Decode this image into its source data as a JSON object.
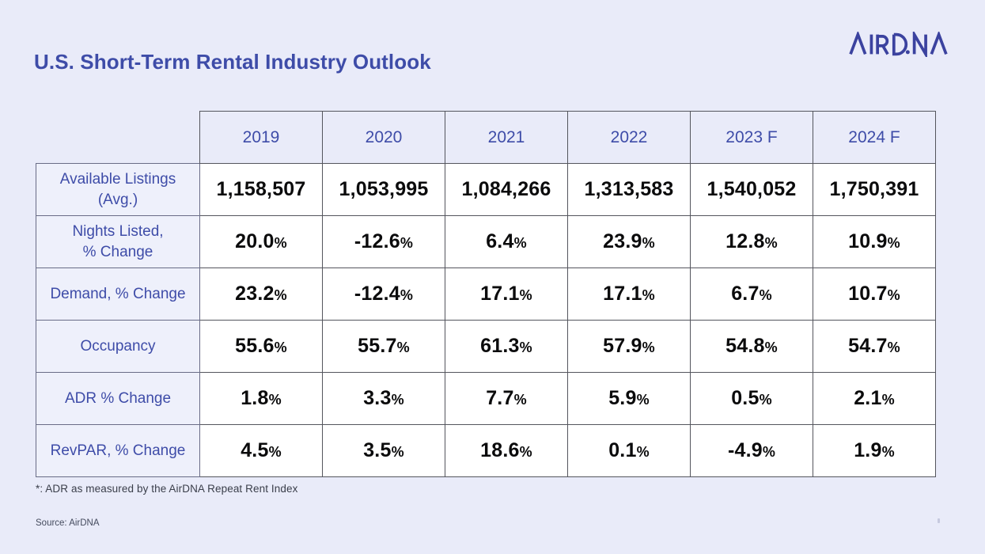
{
  "header": {
    "title": "U.S. Short-Term Rental Industry Outlook",
    "brand": "AIRDNA"
  },
  "footer": {
    "footnote": "*: ADR as measured by the AirDNA Repeat Rent Index",
    "source": "Source: AirDNA"
  },
  "colors": {
    "background": "#E9EBF9",
    "accent_blue": "#3E4CA8",
    "logo_indigo": "#3B429F",
    "label_cell_bg": "#EEF0FB",
    "data_cell_bg": "#FFFFFF",
    "grid_border_dark": "#54555D",
    "grid_border_label": "#696C86",
    "value_text": "#0B0B0C"
  },
  "chart_data": {
    "type": "table",
    "title": "U.S. Short-Term Rental Industry Outlook",
    "columns": [
      "2019",
      "2020",
      "2021",
      "2022",
      "2023 F",
      "2024 F"
    ],
    "rows": [
      {
        "label": "Available Listings\n(Avg.)",
        "values": [
          "1,158,507",
          "1,053,995",
          "1,084,266",
          "1,313,583",
          "1,540,052",
          "1,750,391"
        ]
      },
      {
        "label": "Nights Listed,\n% Change",
        "values": [
          "20.0%",
          "-12.6%",
          "6.4%",
          "23.9%",
          "12.8%",
          "10.9%"
        ]
      },
      {
        "label": "Demand, % Change",
        "values": [
          "23.2%",
          "-12.4%",
          "17.1%",
          "17.1%",
          "6.7%",
          "10.7%"
        ]
      },
      {
        "label": "Occupancy",
        "values": [
          "55.6%",
          "55.7%",
          "61.3%",
          "57.9%",
          "54.8%",
          "54.7%"
        ]
      },
      {
        "label": "ADR % Change",
        "values": [
          "1.8%",
          "3.3%",
          "7.7%",
          "5.9%",
          "0.5%",
          "2.1%"
        ]
      },
      {
        "label": "RevPAR, % Change",
        "values": [
          "4.5%",
          "3.5%",
          "18.6%",
          "0.1%",
          "-4.9%",
          "1.9%"
        ]
      }
    ]
  }
}
